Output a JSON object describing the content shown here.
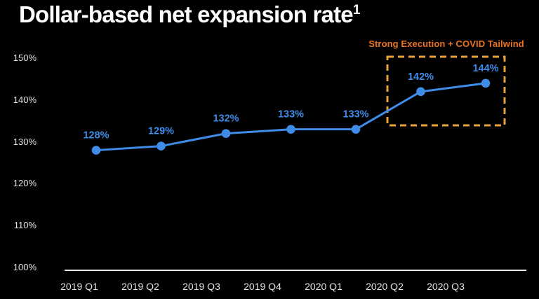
{
  "page": {
    "background": "#000000"
  },
  "title": {
    "text": "Dollar-based net expansion rate",
    "superscript": "1"
  },
  "annotation": {
    "label": "Strong Execution + COVID Tailwind",
    "text_color": "#EB731F",
    "box_color": "#E8A23B"
  },
  "colors": {
    "line_blue": "#3F8BE8",
    "axis_text": "#E4E4E4",
    "axis_line": "#E9E9E9",
    "title_text": "#FFFFFF"
  },
  "chart_data": {
    "type": "line",
    "title": "Dollar-based net expansion rate",
    "categories": [
      "2019 Q1",
      "2019 Q2",
      "2019 Q3",
      "2019 Q4",
      "2020 Q1",
      "2020 Q2",
      "2020 Q3"
    ],
    "series": [
      {
        "name": "Dollar-based net expansion rate",
        "values": [
          128,
          129,
          132,
          133,
          133,
          142,
          144
        ]
      }
    ],
    "point_labels": [
      "128%",
      "129%",
      "132%",
      "133%",
      "133%",
      "142%",
      "144%"
    ],
    "y_tick_values": [
      150,
      140,
      130,
      120,
      110,
      100
    ],
    "y_tick_labels": [
      "150%",
      "140%",
      "130%",
      "120%",
      "110%",
      "100%"
    ],
    "ylim": [
      100,
      150
    ],
    "xlabel": "",
    "ylabel": "",
    "grid": false,
    "legend": "none",
    "annotation_window": {
      "label": "Strong Execution + COVID Tailwind",
      "categories": [
        "2020 Q2",
        "2020 Q3"
      ]
    }
  }
}
